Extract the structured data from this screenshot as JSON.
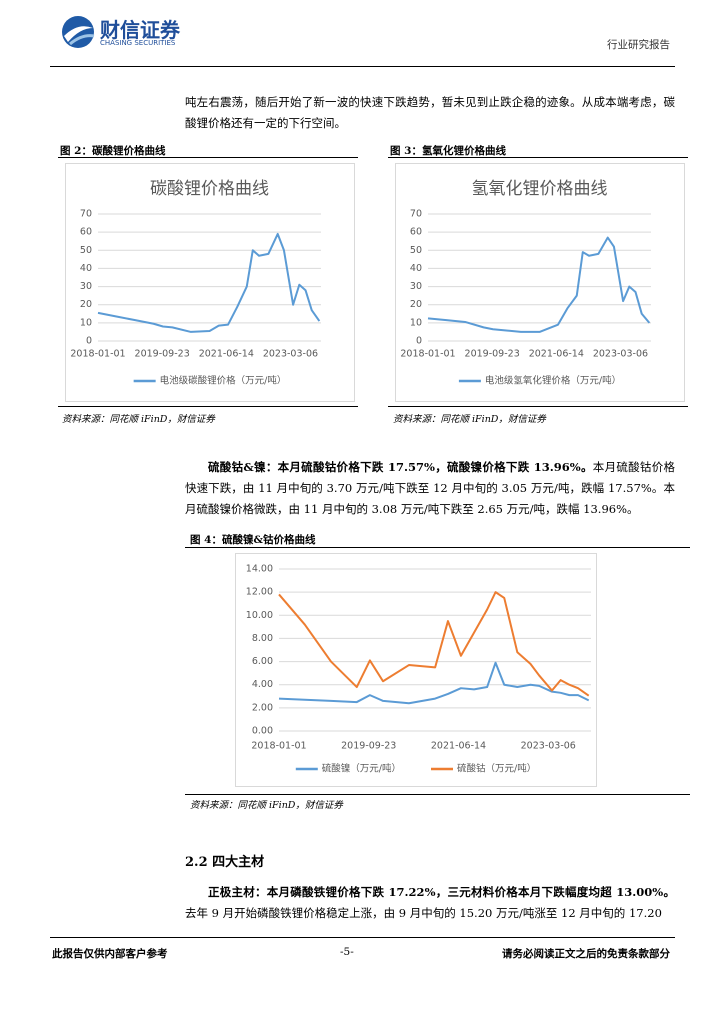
{
  "header": {
    "logo_name": "财信证券",
    "logo_en": "CHASING SECURITIES",
    "report_type": "行业研究报告"
  },
  "paragraph_1": "吨左右震荡，随后开始了新一波的快速下跌趋势，暂未见到止跌企稳的迹象。从成本端考虑，碳酸锂价格还有一定的下行空间。",
  "figures": [
    {
      "caption": "图 2：碳酸锂价格曲线",
      "source": "资料来源：同花顺 iFinD，财信证券"
    },
    {
      "caption": "图 3：氢氧化锂价格曲线",
      "source": "资料来源：同花顺 iFinD，财信证券"
    },
    {
      "caption": "图 4：硫酸镍&钴价格曲线",
      "source": "资料来源：同花顺 iFinD，财信证券"
    }
  ],
  "paragraph_2": {
    "lead": "硫酸钴&镍：本月硫酸钴价格下跌 17.57%，硫酸镍价格下跌 13.96%。",
    "text": "本月硫酸钴价格快速下跌，由 11 月中旬的 3.70 万元/吨下跌至 12 月中旬的 3.05 万元/吨，跌幅 17.57%。本月硫酸镍价格微跌，由 11 月中旬的 3.08 万元/吨下跌至 2.65 万元/吨，跌幅 13.96%。"
  },
  "section_heading": "2.2 四大主材",
  "paragraph_3": {
    "lead": "正极主材：本月磷酸铁锂价格下跌 17.22%，三元材料价格本月下跌幅度均超 13.00%。",
    "text": "去年 9 月开始磷酸铁锂价格稳定上涨，由 9 月中旬的 15.20 万元/吨涨至 12 月中旬的 17.20"
  },
  "footer": {
    "left": "此报告仅供内部客户参考",
    "page": "-5-",
    "right": "请务必阅读正文之后的免责条款部分"
  },
  "chart_data": [
    {
      "type": "line",
      "title": "碳酸锂价格曲线",
      "x": [
        "2018-01-01",
        "2018-07-01",
        "2019-01-01",
        "2019-07-01",
        "2019-10-01",
        "2020-01-01",
        "2020-07-01",
        "2021-01-01",
        "2021-04-01",
        "2021-07-01",
        "2021-10-01",
        "2022-01-01",
        "2022-03-01",
        "2022-05-01",
        "2022-08-01",
        "2022-11-01",
        "2023-01-01",
        "2023-04-01",
        "2023-06-01",
        "2023-08-01",
        "2023-10-01",
        "2023-12-15"
      ],
      "series": [
        {
          "name": "电池级碳酸锂价格（万元/吨）",
          "color": "#5b9bd5",
          "values": [
            15.5,
            13.5,
            11.5,
            9.5,
            8,
            7.5,
            5,
            5.5,
            8.5,
            9,
            19,
            30,
            50,
            47,
            48,
            59,
            50,
            20,
            31,
            28,
            17,
            11
          ]
        }
      ],
      "xlim": [
        "2018-01-01",
        "2023-12-31"
      ],
      "xticks": [
        "2018-01-01",
        "2019-09-23",
        "2021-06-14",
        "2023-03-06"
      ],
      "ylim": [
        0,
        70
      ],
      "yticks": [
        0,
        10,
        20,
        30,
        40,
        50,
        60,
        70
      ],
      "grid": true,
      "legend": "bottom"
    },
    {
      "type": "line",
      "title": "氢氧化锂价格曲线",
      "x": [
        "2018-01-01",
        "2018-07-01",
        "2019-01-01",
        "2019-07-01",
        "2019-10-01",
        "2020-01-01",
        "2020-07-01",
        "2021-01-01",
        "2021-04-01",
        "2021-07-01",
        "2021-10-01",
        "2022-01-01",
        "2022-03-01",
        "2022-05-01",
        "2022-08-01",
        "2022-11-01",
        "2023-01-01",
        "2023-04-01",
        "2023-06-01",
        "2023-08-01",
        "2023-10-01",
        "2023-12-15"
      ],
      "series": [
        {
          "name": "电池级氢氧化锂价格（万元/吨）",
          "color": "#5b9bd5",
          "values": [
            12.5,
            11.5,
            10.5,
            7.5,
            6.5,
            6,
            5,
            5,
            7,
            9,
            18,
            25,
            49,
            47,
            48,
            57,
            52,
            22,
            30,
            27,
            15,
            10
          ]
        }
      ],
      "xlim": [
        "2018-01-01",
        "2023-12-31"
      ],
      "xticks": [
        "2018-01-01",
        "2019-09-23",
        "2021-06-14",
        "2023-03-06"
      ],
      "ylim": [
        0,
        70
      ],
      "yticks": [
        0,
        10,
        20,
        30,
        40,
        50,
        60,
        70
      ],
      "grid": true,
      "legend": "bottom"
    },
    {
      "type": "line",
      "x": [
        "2018-01-01",
        "2018-07-01",
        "2019-01-01",
        "2019-07-01",
        "2019-10-01",
        "2020-01-01",
        "2020-07-01",
        "2021-01-01",
        "2021-04-01",
        "2021-07-01",
        "2021-10-01",
        "2022-01-01",
        "2022-03-01",
        "2022-05-01",
        "2022-08-01",
        "2022-11-01",
        "2023-01-01",
        "2023-04-01",
        "2023-06-01",
        "2023-08-01",
        "2023-10-01",
        "2023-12-15"
      ],
      "series": [
        {
          "name": "硫酸镍（万元/吨）",
          "color": "#5b9bd5",
          "values": [
            2.8,
            2.7,
            2.6,
            2.5,
            3.1,
            2.6,
            2.4,
            2.8,
            3.2,
            3.7,
            3.6,
            3.8,
            5.9,
            4.0,
            3.8,
            4.0,
            3.9,
            3.4,
            3.3,
            3.1,
            3.1,
            2.65
          ]
        },
        {
          "name": "硫酸钴（万元/吨）",
          "color": "#ed7d31",
          "values": [
            11.8,
            9.2,
            6.0,
            3.8,
            6.1,
            4.3,
            5.7,
            5.5,
            9.5,
            6.5,
            8.5,
            10.5,
            12.0,
            11.5,
            6.8,
            5.8,
            4.8,
            3.5,
            4.4,
            4.0,
            3.7,
            3.05
          ]
        }
      ],
      "xlim": [
        "2018-01-01",
        "2023-12-31"
      ],
      "xticks": [
        "2018-01-01",
        "2019-09-23",
        "2021-06-14",
        "2023-03-06"
      ],
      "ylim": [
        0,
        14
      ],
      "yticks": [
        {
          "value": 0,
          "label": "0.00"
        },
        {
          "value": 2,
          "label": "2.00"
        },
        {
          "value": 4,
          "label": "4.00"
        },
        {
          "value": 6,
          "label": "6.00"
        },
        {
          "value": 8,
          "label": "8.00"
        },
        {
          "value": 10,
          "label": "10.00"
        },
        {
          "value": 12,
          "label": "12.00"
        },
        {
          "value": 14,
          "label": "14.00"
        }
      ],
      "grid": true,
      "legend": "bottom"
    }
  ]
}
